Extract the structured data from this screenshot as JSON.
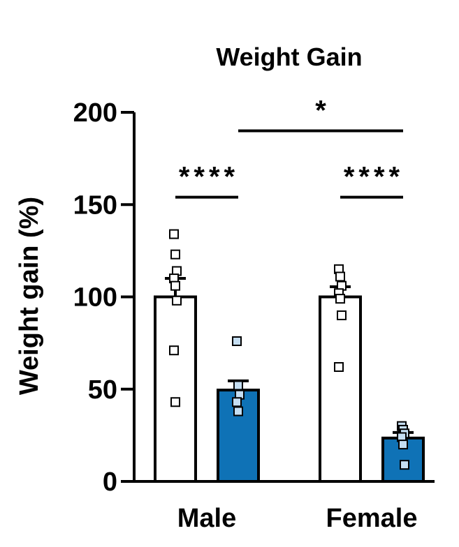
{
  "chart_data": {
    "type": "bar",
    "title": "Weight Gain",
    "xlabel": "",
    "ylabel": "Weight gain (%)",
    "ylim": [
      0,
      200
    ],
    "yticks": [
      0,
      50,
      100,
      150,
      200
    ],
    "categories": [
      "Male",
      "Female"
    ],
    "grid": false,
    "series": [
      {
        "fill": "#ffffff",
        "point_fill": "#ffffff",
        "values": [
          100,
          100
        ],
        "sem": [
          10,
          5.5
        ],
        "points": [
          [
            134,
            123,
            114,
            110,
            106,
            98,
            71,
            43
          ],
          [
            115,
            111,
            106,
            102,
            99,
            90,
            62
          ]
        ]
      },
      {
        "fill": "#0f72b6",
        "point_fill": "#c5def2",
        "values": [
          49.5,
          23.5
        ],
        "sem": [
          5,
          3
        ],
        "points": [
          [
            76,
            52,
            47,
            43,
            38
          ],
          [
            30,
            28,
            26,
            24,
            20,
            9
          ]
        ]
      }
    ],
    "annotations": [
      {
        "label": "****",
        "from": [
          0,
          0
        ],
        "to": [
          0,
          1
        ],
        "y": 154
      },
      {
        "label": "****",
        "from": [
          1,
          0
        ],
        "to": [
          1,
          1
        ],
        "y": 154
      },
      {
        "label": "*",
        "from": [
          0,
          1
        ],
        "to": [
          1,
          1
        ],
        "y": 190
      }
    ]
  }
}
